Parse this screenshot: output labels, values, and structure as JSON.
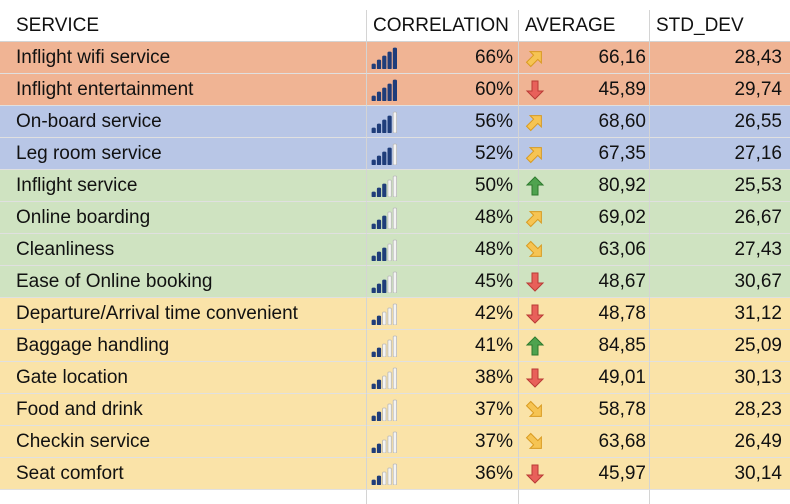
{
  "header": {
    "service": "SERVICE",
    "correlation": "CORRELATION",
    "average": "AVERAGE",
    "std_dev": "STD_DEV"
  },
  "colors": {
    "orange": "#f0b494",
    "blue": "#b8c6e6",
    "green": "#cfe3c1",
    "yellow": "#fae3a8"
  },
  "rows": [
    {
      "service": "Inflight wifi service",
      "correlation": "66%",
      "correlation_level": 4,
      "trend": "up-right",
      "average": "66,16",
      "std_dev": "28,43",
      "color": "#f0b494"
    },
    {
      "service": "Inflight entertainment",
      "correlation": "60%",
      "correlation_level": 4,
      "trend": "down",
      "average": "45,89",
      "std_dev": "29,74",
      "color": "#f0b494"
    },
    {
      "service": "On-board service",
      "correlation": "56%",
      "correlation_level": 3,
      "trend": "up-right",
      "average": "68,60",
      "std_dev": "26,55",
      "color": "#b8c6e6"
    },
    {
      "service": "Leg room service",
      "correlation": "52%",
      "correlation_level": 3,
      "trend": "up-right",
      "average": "67,35",
      "std_dev": "27,16",
      "color": "#b8c6e6"
    },
    {
      "service": "Inflight service",
      "correlation": "50%",
      "correlation_level": 2,
      "trend": "up",
      "average": "80,92",
      "std_dev": "25,53",
      "color": "#cfe3c1"
    },
    {
      "service": "Online boarding",
      "correlation": "48%",
      "correlation_level": 2,
      "trend": "up-right",
      "average": "69,02",
      "std_dev": "26,67",
      "color": "#cfe3c1"
    },
    {
      "service": "Cleanliness",
      "correlation": "48%",
      "correlation_level": 2,
      "trend": "down-right",
      "average": "63,06",
      "std_dev": "27,43",
      "color": "#cfe3c1"
    },
    {
      "service": "Ease of Online booking",
      "correlation": "45%",
      "correlation_level": 2,
      "trend": "down",
      "average": "48,67",
      "std_dev": "30,67",
      "color": "#cfe3c1"
    },
    {
      "service": "Departure/Arrival time convenient",
      "correlation": "42%",
      "correlation_level": 1,
      "trend": "down",
      "average": "48,78",
      "std_dev": "31,12",
      "color": "#fae3a8"
    },
    {
      "service": "Baggage handling",
      "correlation": "41%",
      "correlation_level": 1,
      "trend": "up",
      "average": "84,85",
      "std_dev": "25,09",
      "color": "#fae3a8"
    },
    {
      "service": "Gate location",
      "correlation": "38%",
      "correlation_level": 1,
      "trend": "down",
      "average": "49,01",
      "std_dev": "30,13",
      "color": "#fae3a8"
    },
    {
      "service": "Food and drink",
      "correlation": "37%",
      "correlation_level": 1,
      "trend": "down-right",
      "average": "58,78",
      "std_dev": "28,23",
      "color": "#fae3a8"
    },
    {
      "service": "Checkin service",
      "correlation": "37%",
      "correlation_level": 1,
      "trend": "down-right",
      "average": "63,68",
      "std_dev": "26,49",
      "color": "#fae3a8"
    },
    {
      "service": "Seat comfort",
      "correlation": "36%",
      "correlation_level": 1,
      "trend": "down",
      "average": "45,97",
      "std_dev": "30,14",
      "color": "#fae3a8"
    }
  ]
}
